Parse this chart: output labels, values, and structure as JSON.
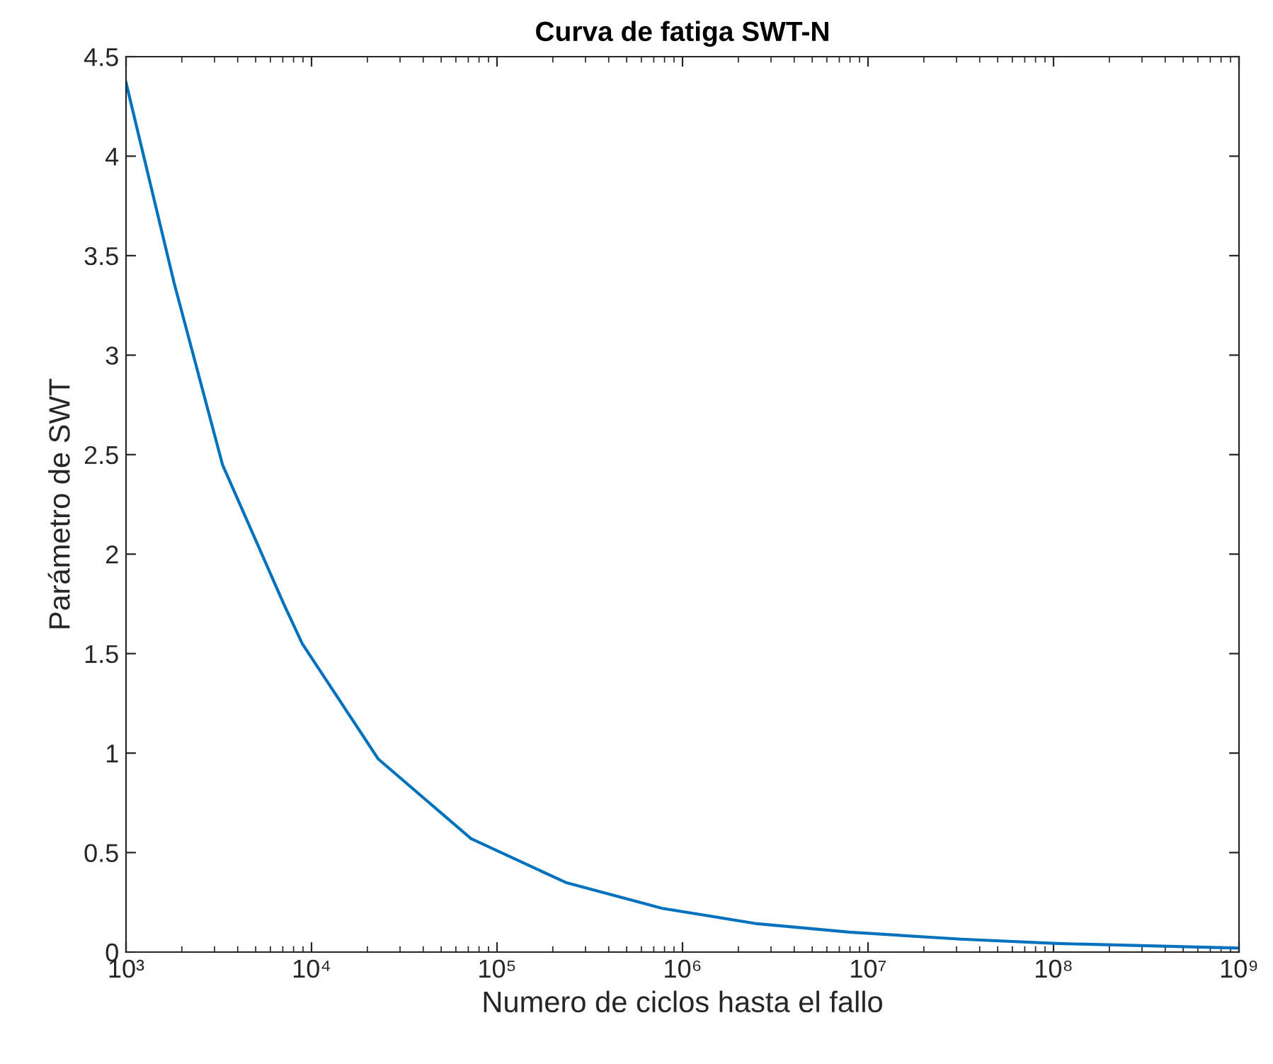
{
  "chart_data": {
    "type": "line",
    "title": "Curva de fatiga SWT-N",
    "xlabel": "Numero de ciclos hasta el fallo",
    "ylabel": "Parámetro de SWT",
    "log": "x",
    "x": [
      1000,
      1820,
      3311,
      7079,
      8913,
      22909,
      72444,
      234423,
      776247,
      2454709,
      7943282,
      31622777,
      104700000,
      1000000000
    ],
    "series": [
      {
        "color": "#0072bd",
        "values": [
          4.37,
          3.36,
          2.45,
          1.75,
          1.55,
          0.97,
          0.57,
          0.35,
          0.22,
          0.144,
          0.1,
          0.065,
          0.043,
          0.02
        ]
      }
    ],
    "xlim": [
      1000,
      1000000000
    ],
    "xticks": [
      {
        "value": 1000,
        "label": "10³"
      },
      {
        "value": 10000,
        "label": "10⁴"
      },
      {
        "value": 100000,
        "label": "10⁵"
      },
      {
        "value": 1000000,
        "label": "10⁶"
      },
      {
        "value": 10000000,
        "label": "10⁷"
      },
      {
        "value": 100000000,
        "label": "10⁸"
      },
      {
        "value": 1000000000,
        "label": "10⁹"
      }
    ],
    "ylim": [
      0,
      4.5
    ],
    "yticks": [
      0,
      0.5,
      1,
      1.5,
      2,
      2.5,
      3,
      3.5,
      4,
      4.5
    ],
    "grid": false,
    "marker": "none",
    "line_style": "solid"
  }
}
